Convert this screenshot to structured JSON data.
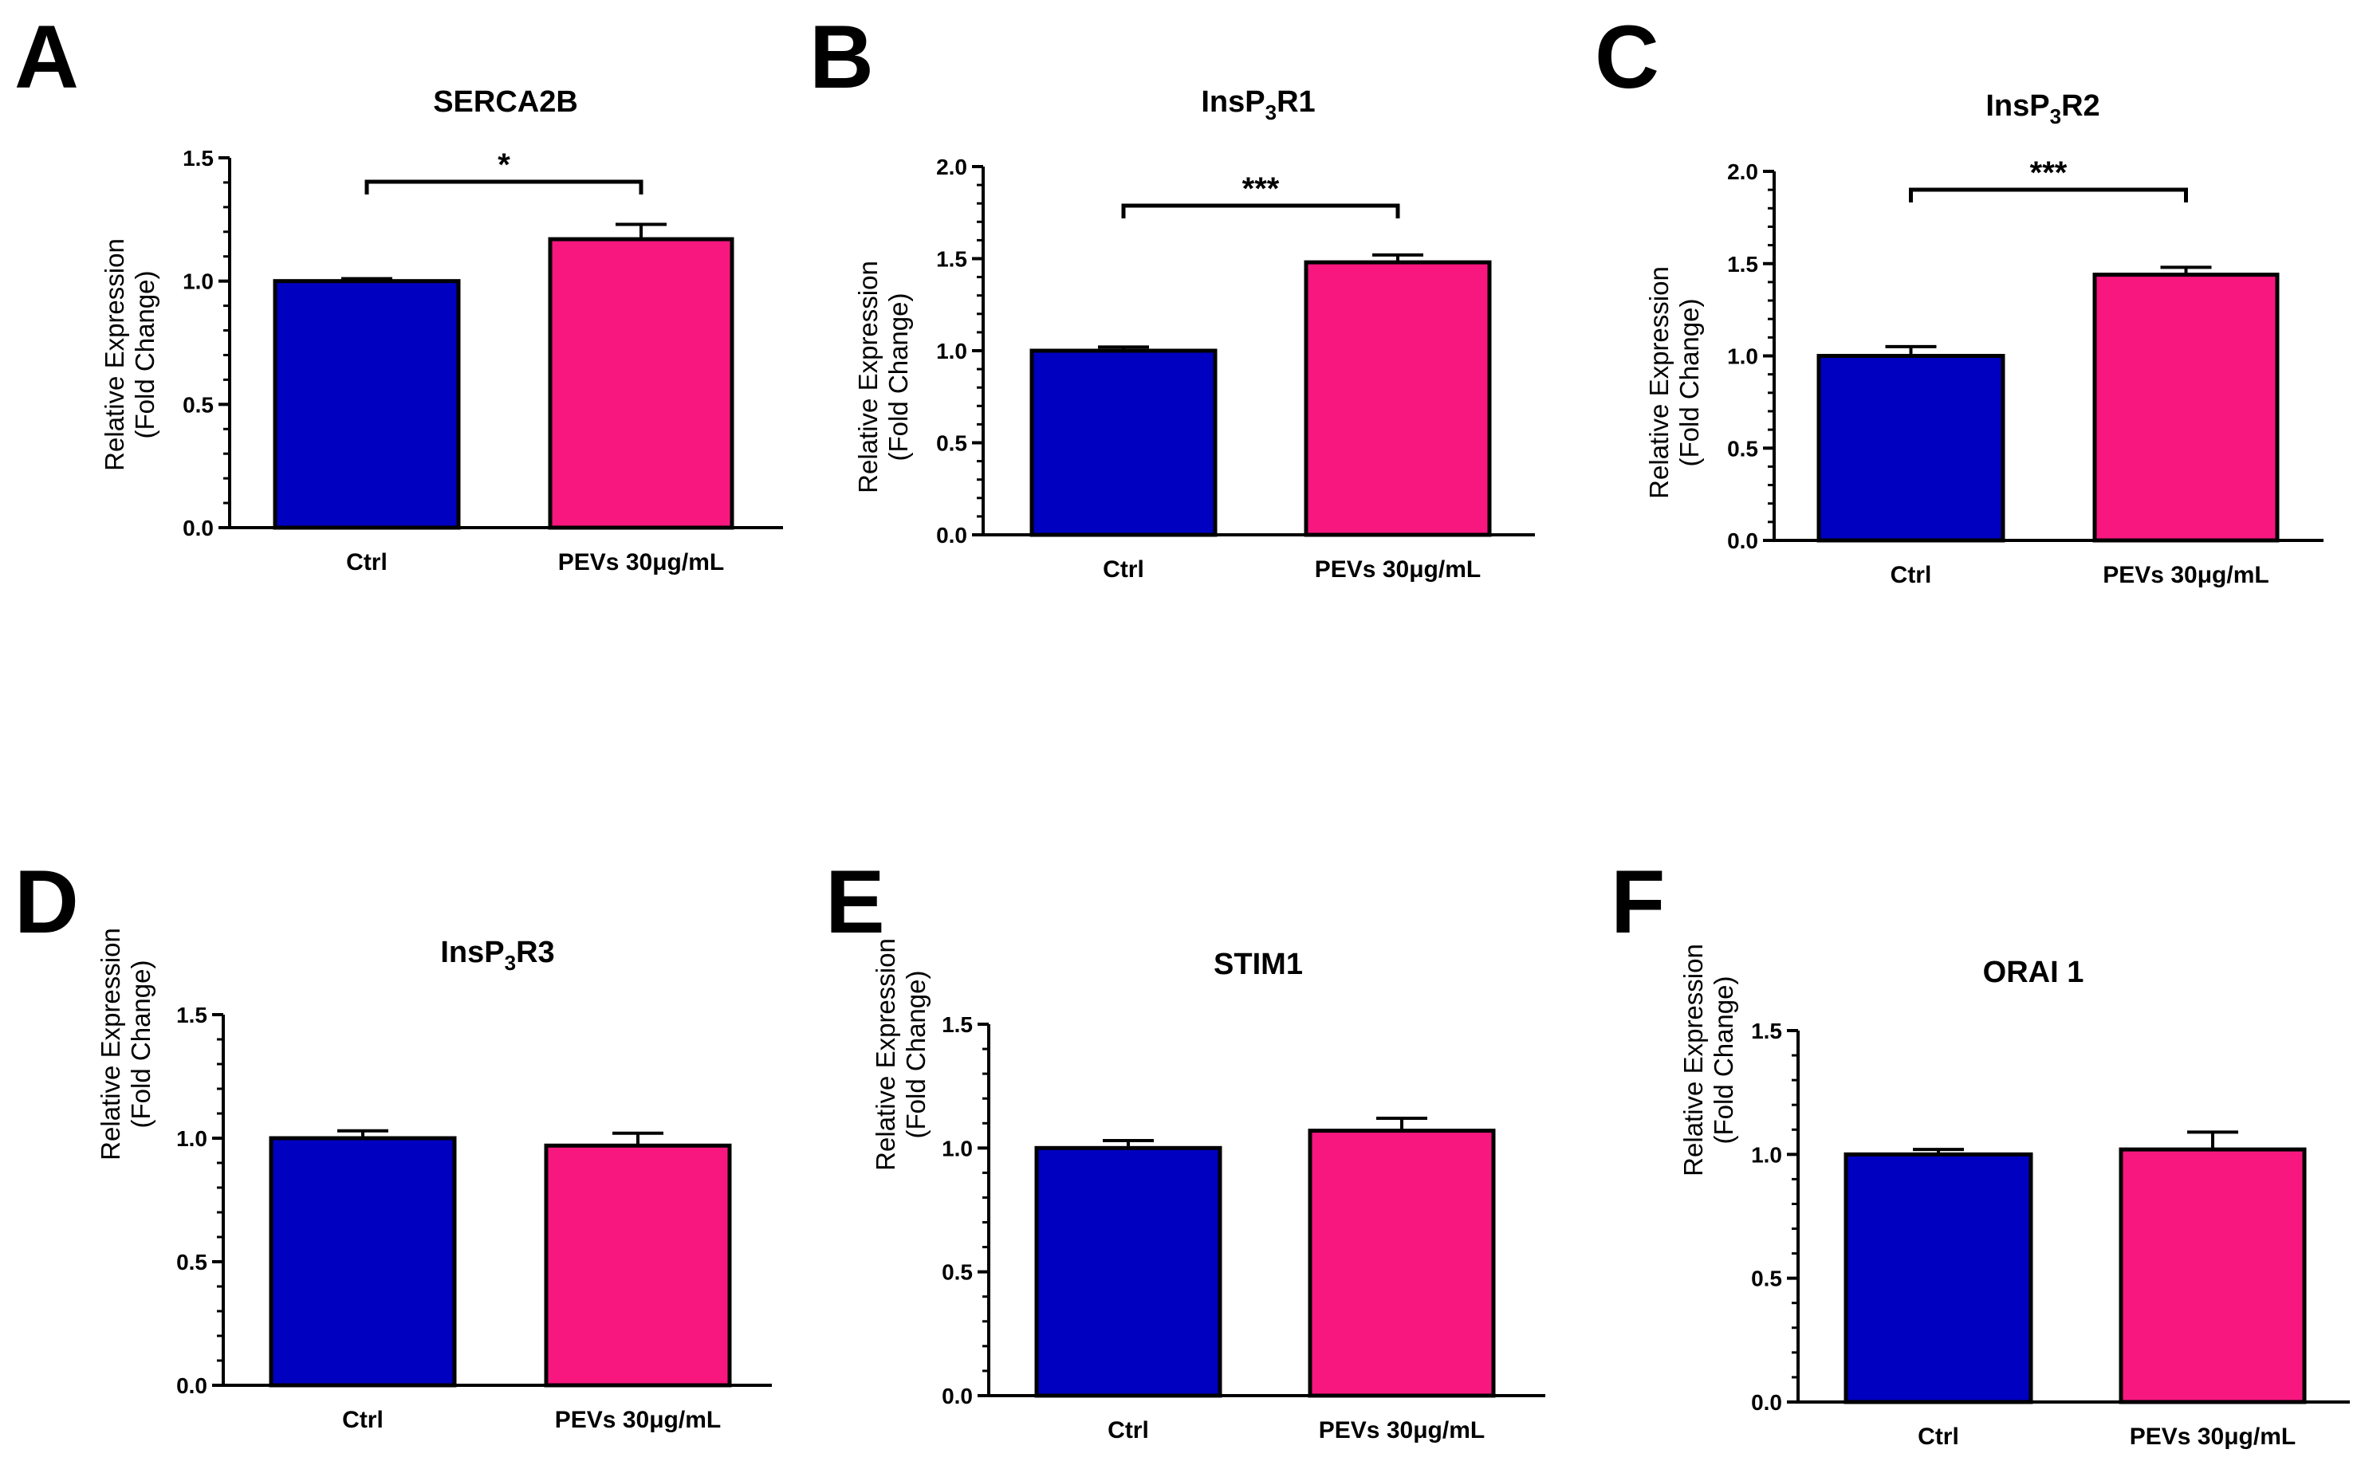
{
  "figure": {
    "background": "#ffffff"
  },
  "colors": {
    "ctrl": "#0000c0",
    "pevs": "#f7177f",
    "axis": "#000000"
  },
  "chart_data": [
    {
      "type": "bar",
      "panel": "A",
      "title_main": "SERCA2B",
      "title_sub": "",
      "title_tail": "",
      "ylabel": [
        "Relative Expression",
        "(Fold Change)"
      ],
      "categories": [
        "Ctrl",
        "PEVs 30μg/mL"
      ],
      "values": [
        1.0,
        1.17
      ],
      "errors": [
        0.01,
        0.06
      ],
      "ylim": [
        0,
        1.5
      ],
      "yticks": [
        0.0,
        0.5,
        1.0,
        1.5
      ],
      "tick_labels": [
        "0.0",
        "0.5",
        "1.0",
        "1.5"
      ],
      "significance": "*"
    },
    {
      "type": "bar",
      "panel": "B",
      "title_main": "InsP",
      "title_sub": "3",
      "title_tail": "R1",
      "ylabel": [
        "Relative Expression",
        "(Fold Change)"
      ],
      "categories": [
        "Ctrl",
        "PEVs 30μg/mL"
      ],
      "values": [
        1.0,
        1.48
      ],
      "errors": [
        0.02,
        0.04
      ],
      "ylim": [
        0,
        2.0
      ],
      "yticks": [
        0.0,
        0.5,
        1.0,
        1.5,
        2.0
      ],
      "tick_labels": [
        "0.0",
        "0.5",
        "1.0",
        "1.5",
        "2.0"
      ],
      "significance": "***"
    },
    {
      "type": "bar",
      "panel": "C",
      "title_main": "InsP",
      "title_sub": "3",
      "title_tail": "R2",
      "ylabel": [
        "Relative Expression",
        "(Fold Change)"
      ],
      "categories": [
        "Ctrl",
        "PEVs 30μg/mL"
      ],
      "values": [
        1.0,
        1.44
      ],
      "errors": [
        0.05,
        0.04
      ],
      "ylim": [
        0,
        2.0
      ],
      "yticks": [
        0.0,
        0.5,
        1.0,
        1.5,
        2.0
      ],
      "tick_labels": [
        "0.0",
        "0.5",
        "1.0",
        "1.5",
        "2.0"
      ],
      "significance": "***"
    },
    {
      "type": "bar",
      "panel": "D",
      "title_main": "InsP",
      "title_sub": "3",
      "title_tail": "R3",
      "ylabel": [
        "Relative Expression",
        "(Fold Change)"
      ],
      "categories": [
        "Ctrl",
        "PEVs 30μg/mL"
      ],
      "values": [
        1.0,
        0.97
      ],
      "errors": [
        0.03,
        0.05
      ],
      "ylim": [
        0,
        1.5
      ],
      "yticks": [
        0.0,
        0.5,
        1.0,
        1.5
      ],
      "tick_labels": [
        "0.0",
        "0.5",
        "1.0",
        "1.5"
      ],
      "significance": ""
    },
    {
      "type": "bar",
      "panel": "E",
      "title_main": "STIM1",
      "title_sub": "",
      "title_tail": "",
      "ylabel": [
        "Relative Expression",
        "(Fold Change)"
      ],
      "categories": [
        "Ctrl",
        "PEVs 30μg/mL"
      ],
      "values": [
        1.0,
        1.07
      ],
      "errors": [
        0.03,
        0.05
      ],
      "ylim": [
        0,
        1.5
      ],
      "yticks": [
        0.0,
        0.5,
        1.0,
        1.5
      ],
      "tick_labels": [
        "0.0",
        "0.5",
        "1.0",
        "1.5"
      ],
      "significance": ""
    },
    {
      "type": "bar",
      "panel": "F",
      "title_main": "ORAI 1",
      "title_sub": "",
      "title_tail": "",
      "ylabel": [
        "Relative Expression",
        "(Fold Change)"
      ],
      "categories": [
        "Ctrl",
        "PEVs 30μg/mL"
      ],
      "values": [
        1.0,
        1.02
      ],
      "errors": [
        0.02,
        0.07
      ],
      "ylim": [
        0,
        1.5
      ],
      "yticks": [
        0.0,
        0.5,
        1.0,
        1.5
      ],
      "tick_labels": [
        "0.0",
        "0.5",
        "1.0",
        "1.5"
      ],
      "significance": ""
    }
  ]
}
